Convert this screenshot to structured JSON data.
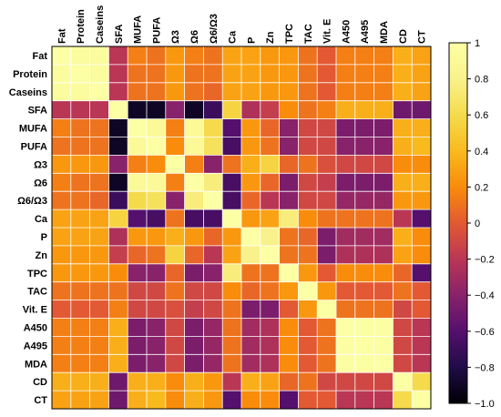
{
  "chart_data": {
    "type": "heatmap",
    "title": "",
    "xlabel": "",
    "ylabel": "",
    "labels": [
      "Fat",
      "Protein",
      "Caseins",
      "SFA",
      "MUFA",
      "PUFA",
      "Ω3",
      "Ω6",
      "Ω6/Ω3",
      "Ca",
      "P",
      "Zn",
      "TPC",
      "TAC",
      "Vit. E",
      "A450",
      "A495",
      "MDA",
      "CD",
      "CT"
    ],
    "colorscale": "inferno",
    "zlim": [
      -1.0,
      1.0
    ],
    "colorbar_ticks": [
      {
        "value": 1,
        "label": "1"
      },
      {
        "value": 0.8,
        "label": "0.8"
      },
      {
        "value": 0.6,
        "label": "0.6"
      },
      {
        "value": 0.4,
        "label": "0.4"
      },
      {
        "value": 0.2,
        "label": "0.2"
      },
      {
        "value": 0,
        "label": "0"
      },
      {
        "value": -0.2,
        "label": "−0.2"
      },
      {
        "value": -0.4,
        "label": "−0.4"
      },
      {
        "value": -0.6,
        "label": "−0.6"
      },
      {
        "value": -0.8,
        "label": "−0.8"
      },
      {
        "value": -1.0,
        "label": "−1.0"
      }
    ],
    "matrix": [
      [
        1.0,
        0.95,
        0.95,
        -0.2,
        0.15,
        0.1,
        0.25,
        0.15,
        0.1,
        0.3,
        0.3,
        0.25,
        0.25,
        0.1,
        0.0,
        0.15,
        0.15,
        0.15,
        0.35,
        0.3
      ],
      [
        0.95,
        1.0,
        0.95,
        -0.2,
        0.1,
        0.1,
        0.25,
        0.1,
        0.1,
        0.3,
        0.3,
        0.25,
        0.25,
        0.1,
        0.0,
        0.15,
        0.15,
        0.15,
        0.35,
        0.3
      ],
      [
        0.95,
        0.95,
        1.0,
        -0.2,
        0.1,
        0.1,
        0.25,
        0.1,
        0.05,
        0.3,
        0.3,
        0.25,
        0.25,
        0.1,
        0.0,
        0.15,
        0.15,
        0.15,
        0.35,
        0.3
      ],
      [
        -0.2,
        -0.2,
        -0.2,
        1.0,
        -0.9,
        -0.9,
        -0.4,
        -0.9,
        -0.7,
        0.55,
        -0.25,
        -0.15,
        0.2,
        0.1,
        0.15,
        0.35,
        0.35,
        0.35,
        -0.5,
        -0.5
      ],
      [
        0.15,
        0.1,
        0.1,
        -0.9,
        1.0,
        0.9,
        0.15,
        0.9,
        0.6,
        -0.6,
        0.25,
        0.05,
        -0.4,
        -0.1,
        -0.1,
        -0.45,
        -0.45,
        -0.45,
        0.35,
        0.35
      ],
      [
        0.1,
        0.1,
        0.1,
        -0.9,
        0.9,
        1.0,
        0.2,
        0.9,
        0.65,
        -0.65,
        0.25,
        0.1,
        -0.4,
        -0.1,
        -0.1,
        -0.4,
        -0.4,
        -0.4,
        0.35,
        0.4
      ],
      [
        0.25,
        0.25,
        0.25,
        -0.4,
        0.15,
        0.2,
        1.0,
        0.15,
        -0.4,
        0.1,
        0.35,
        0.55,
        0.05,
        0.1,
        -0.05,
        -0.1,
        -0.1,
        -0.1,
        0.2,
        0.2
      ],
      [
        0.15,
        0.1,
        0.1,
        -0.9,
        0.9,
        0.9,
        0.15,
        1.0,
        0.75,
        -0.65,
        0.25,
        0.05,
        -0.45,
        -0.1,
        -0.15,
        -0.45,
        -0.45,
        -0.45,
        0.35,
        0.35
      ],
      [
        0.1,
        0.1,
        0.05,
        -0.7,
        0.6,
        0.65,
        -0.4,
        0.75,
        1.0,
        -0.65,
        0.05,
        -0.2,
        -0.4,
        -0.1,
        -0.1,
        -0.35,
        -0.35,
        -0.35,
        0.25,
        0.25
      ],
      [
        0.3,
        0.3,
        0.3,
        0.55,
        -0.6,
        -0.65,
        0.1,
        -0.65,
        -0.65,
        1.0,
        0.25,
        0.3,
        0.75,
        0.2,
        0.1,
        0.1,
        0.1,
        0.1,
        -0.2,
        -0.6
      ],
      [
        0.3,
        0.3,
        0.3,
        -0.25,
        0.25,
        0.25,
        0.35,
        0.25,
        0.05,
        0.25,
        1.0,
        0.8,
        0.1,
        0.05,
        -0.45,
        -0.3,
        -0.3,
        -0.3,
        0.35,
        0.2
      ],
      [
        0.25,
        0.25,
        0.25,
        -0.15,
        0.05,
        0.1,
        0.55,
        0.05,
        -0.2,
        0.3,
        0.8,
        1.0,
        0.1,
        0.1,
        -0.45,
        -0.25,
        -0.25,
        -0.25,
        0.3,
        0.2
      ],
      [
        0.25,
        0.25,
        0.25,
        0.2,
        -0.4,
        -0.4,
        0.05,
        -0.45,
        -0.4,
        0.75,
        0.1,
        0.1,
        1.0,
        0.25,
        0.0,
        0.2,
        0.2,
        0.2,
        0.05,
        -0.6
      ],
      [
        0.1,
        0.1,
        0.1,
        0.1,
        -0.1,
        -0.1,
        0.1,
        -0.1,
        -0.1,
        0.2,
        0.05,
        0.1,
        0.25,
        1.0,
        0.25,
        0.0,
        0.0,
        0.0,
        0.1,
        0.0
      ],
      [
        0.0,
        0.0,
        0.0,
        0.15,
        -0.1,
        -0.1,
        -0.05,
        -0.15,
        -0.1,
        0.1,
        -0.45,
        -0.45,
        0.0,
        0.25,
        1.0,
        0.1,
        0.1,
        0.1,
        -0.1,
        0.0
      ],
      [
        0.15,
        0.15,
        0.15,
        0.35,
        -0.45,
        -0.4,
        -0.1,
        -0.45,
        -0.35,
        0.1,
        -0.3,
        -0.25,
        0.2,
        0.0,
        0.1,
        1.0,
        0.98,
        0.98,
        -0.1,
        -0.2
      ],
      [
        0.15,
        0.15,
        0.15,
        0.35,
        -0.45,
        -0.4,
        -0.1,
        -0.45,
        -0.35,
        0.1,
        -0.3,
        -0.25,
        0.2,
        0.0,
        0.1,
        0.98,
        1.0,
        0.98,
        -0.1,
        -0.2
      ],
      [
        0.15,
        0.15,
        0.15,
        0.35,
        -0.45,
        -0.4,
        -0.1,
        -0.45,
        -0.35,
        0.1,
        -0.3,
        -0.25,
        0.2,
        0.0,
        0.1,
        0.98,
        0.98,
        1.0,
        -0.1,
        -0.2
      ],
      [
        0.35,
        0.35,
        0.35,
        -0.5,
        0.35,
        0.35,
        0.2,
        0.35,
        0.25,
        -0.2,
        0.35,
        0.3,
        0.05,
        0.1,
        -0.1,
        -0.1,
        -0.1,
        -0.1,
        1.0,
        0.6
      ],
      [
        0.3,
        0.3,
        0.3,
        -0.5,
        0.35,
        0.4,
        0.2,
        0.35,
        0.25,
        -0.6,
        0.2,
        0.2,
        -0.6,
        0.0,
        0.0,
        -0.2,
        -0.2,
        -0.2,
        0.6,
        1.0
      ]
    ]
  }
}
